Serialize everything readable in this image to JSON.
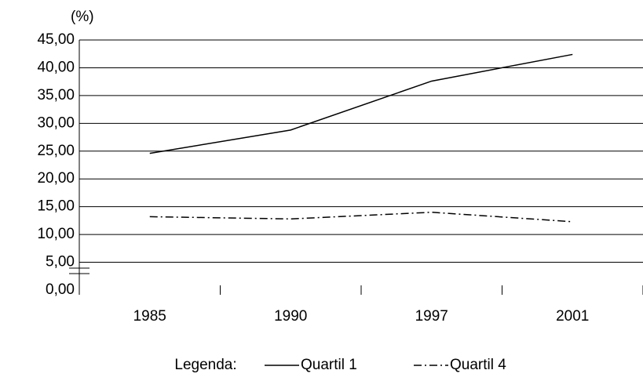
{
  "chart_data": {
    "type": "line",
    "y_label": "(%)",
    "categories": [
      "1985",
      "1990",
      "1997",
      "2001"
    ],
    "series": [
      {
        "name": "Quartil 1",
        "color": "#000000",
        "dash": "solid",
        "values": [
          24.6,
          28.8,
          37.6,
          42.4
        ]
      },
      {
        "name": "Quartil 4",
        "color": "#000000",
        "dash": "dashdot",
        "values": [
          13.2,
          12.8,
          14.0,
          12.3
        ]
      }
    ],
    "ylim": [
      0,
      45
    ],
    "yticks": [
      {
        "value": 0,
        "label": "0,00"
      },
      {
        "value": 5,
        "label": "5,00"
      },
      {
        "value": 10,
        "label": "10,00"
      },
      {
        "value": 15,
        "label": "15,00"
      },
      {
        "value": 20,
        "label": "20,00"
      },
      {
        "value": 25,
        "label": "25,00"
      },
      {
        "value": 30,
        "label": "30,00"
      },
      {
        "value": 35,
        "label": "35,00"
      },
      {
        "value": 40,
        "label": "40,00"
      },
      {
        "value": 45,
        "label": "45,00"
      }
    ],
    "grid": true,
    "legend_title": "Legenda:"
  }
}
